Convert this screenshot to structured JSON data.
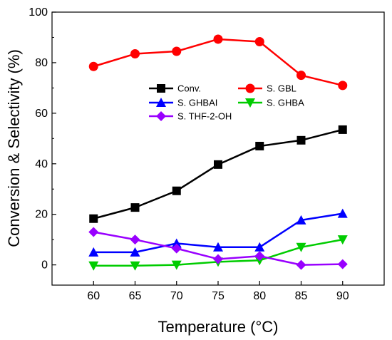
{
  "chart_data": {
    "type": "line",
    "title": "",
    "xlabel": "Temperature  (°C)",
    "ylabel": "Conversion & Selectivity (%)",
    "x": [
      60,
      65,
      70,
      75,
      80,
      85,
      90
    ],
    "xlim": [
      55,
      95
    ],
    "ylim": [
      -8,
      100
    ],
    "xticks": [
      "60",
      "65",
      "70",
      "75",
      "80",
      "85",
      "90"
    ],
    "yticks": [
      "0",
      "20",
      "40",
      "60",
      "80",
      "100"
    ],
    "grid": false,
    "legend_position": "inside-center-top",
    "series": [
      {
        "name": "Conv.",
        "color": "#000000",
        "marker": "square",
        "values": [
          18.3,
          22.7,
          29.3,
          39.7,
          47.0,
          49.3,
          53.5
        ]
      },
      {
        "name": "S. GBL",
        "color": "#ff0000",
        "marker": "circle",
        "values": [
          78.5,
          83.5,
          84.5,
          89.3,
          88.3,
          75.0,
          71.0
        ]
      },
      {
        "name": "S. GHBAI",
        "color": "#0000ff",
        "marker": "triangle-up",
        "values": [
          5.0,
          5.0,
          8.5,
          7.0,
          7.0,
          17.7,
          20.3
        ]
      },
      {
        "name": "S. GHBA",
        "color": "#00cc00",
        "marker": "triangle-down",
        "values": [
          -0.3,
          -0.3,
          0.0,
          1.2,
          1.8,
          7.0,
          10.0
        ]
      },
      {
        "name": "S. THF-2-OH",
        "color": "#9900ff",
        "marker": "diamond",
        "values": [
          13.0,
          10.0,
          6.5,
          2.3,
          3.5,
          0.0,
          0.3
        ]
      }
    ]
  }
}
